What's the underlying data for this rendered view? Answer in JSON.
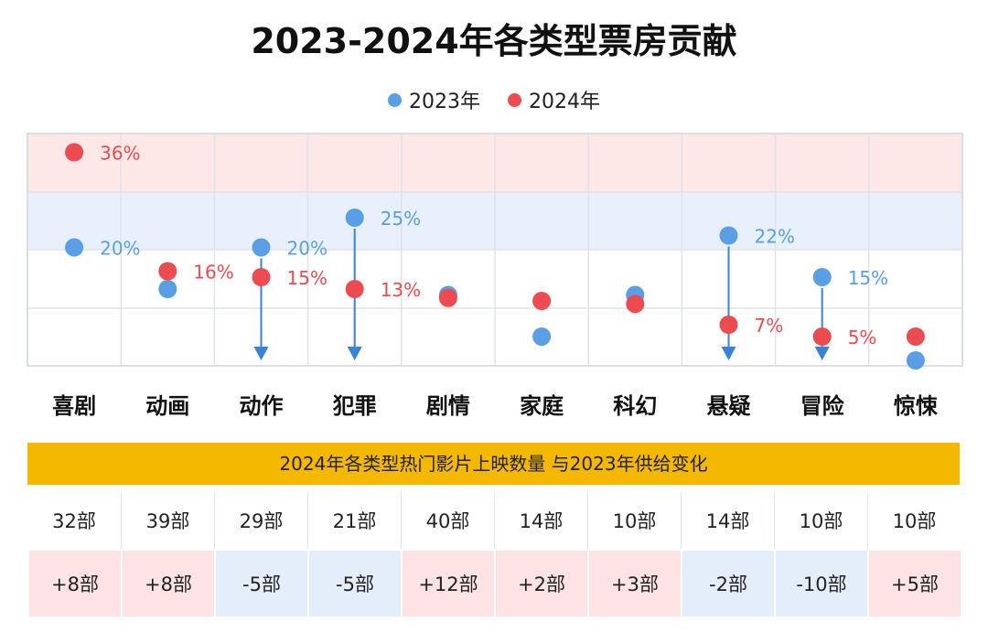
{
  "title": "2023-2024年各类型票房贡献",
  "colors": {
    "y2023": "#5a9ee6",
    "y2024": "#ec4b50",
    "banner": "#f5b800",
    "pink_band": "#fde7e7",
    "blue_band": "#e8f1fb",
    "pos_cell": "#fde3e4",
    "neg_cell": "#e4eefa",
    "arrow": "#3a82d8"
  },
  "chart_data": {
    "type": "scatter",
    "title": "2023-2024年各类型票房贡献",
    "categories": [
      "喜剧",
      "动画",
      "动作",
      "犯罪",
      "剧情",
      "家庭",
      "科幻",
      "悬疑",
      "冒险",
      "惊悚"
    ],
    "series": [
      {
        "name": "2023年",
        "values": [
          20,
          13,
          20,
          25,
          12,
          5,
          12,
          22,
          15,
          1
        ]
      },
      {
        "name": "2024年",
        "values": [
          36,
          16,
          15,
          13,
          11.5,
          11,
          10.5,
          7,
          5,
          5
        ]
      }
    ],
    "data_labels_2023": [
      "20%",
      "",
      "20%",
      "25%",
      "",
      "",
      "",
      "22%",
      "15%",
      ""
    ],
    "data_labels_2024": [
      "36%",
      "16%",
      "15%",
      "13%",
      "",
      "",
      "",
      "7%",
      "5%",
      ""
    ],
    "decline_arrows": [
      "动作",
      "犯罪",
      "悬疑",
      "冒险"
    ],
    "ylim": [
      0,
      40
    ],
    "legend_position": "top-center",
    "grid": true
  },
  "table": {
    "banner": "2024年各类型热门影片上映数量 与2023年供给变化",
    "counts": [
      "32部",
      "39部",
      "29部",
      "21部",
      "40部",
      "14部",
      "10部",
      "14部",
      "10部",
      "10部"
    ],
    "changes": [
      "+8部",
      "+8部",
      "-5部",
      "-5部",
      "+12部",
      "+2部",
      "+3部",
      "-2部",
      "-10部",
      "+5部"
    ]
  }
}
